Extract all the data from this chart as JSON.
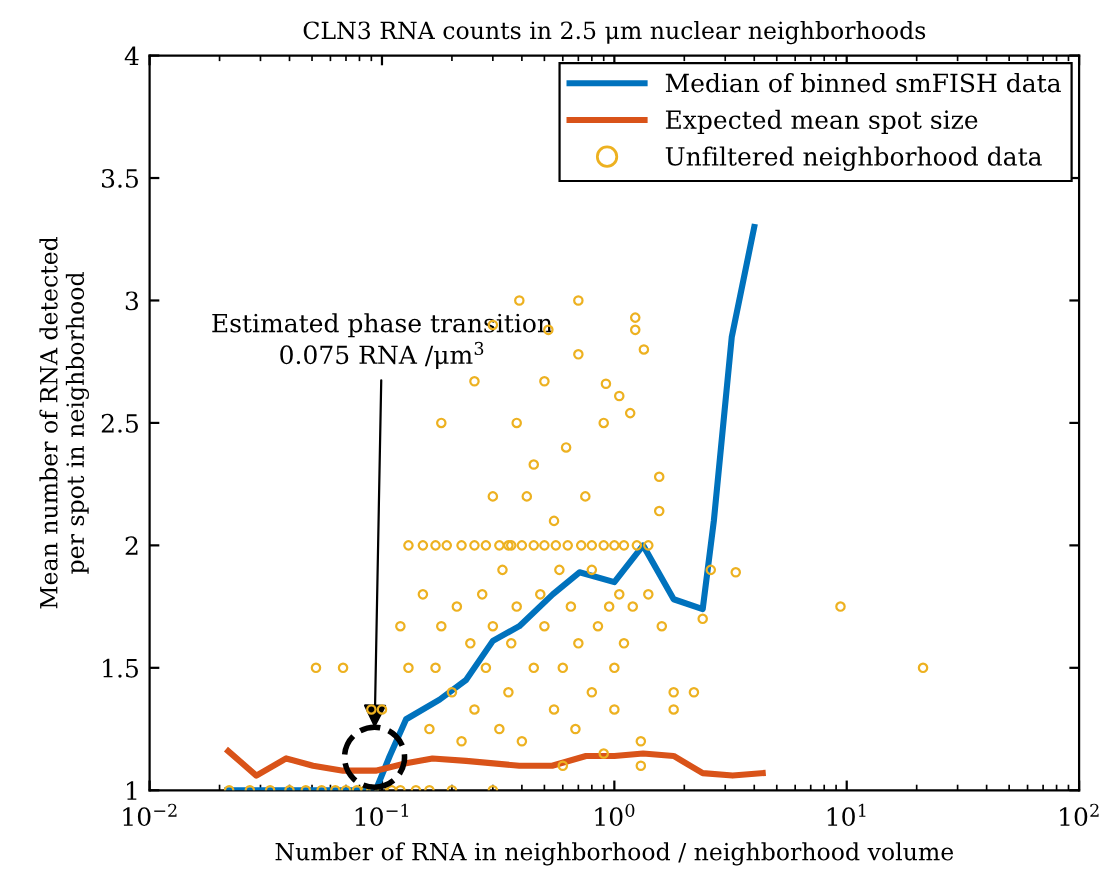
{
  "chart_data": {
    "type": "scatter",
    "title": "CLN3 RNA counts in 2.5 μm nuclear neighborhoods",
    "xlabel": "Number of RNA in neighborhood / neighborhood volume",
    "ylabel": "Mean number of RNA detected\nper spot in neighborhood",
    "log": "x",
    "xlim": [
      0.01,
      100
    ],
    "xticks": [
      {
        "value": 0.01,
        "label": "10$^{−2}$"
      },
      {
        "value": 0.1,
        "label": "10$^{−1}$"
      },
      {
        "value": 1,
        "label": "10$^{0}$"
      },
      {
        "value": 10,
        "label": "10$^{1}$"
      },
      {
        "value": 100,
        "label": "10$^{2}$"
      }
    ],
    "ylim": [
      1,
      4
    ],
    "yticks": [
      1,
      1.5,
      2,
      2.5,
      3,
      3.5,
      4
    ],
    "grid": false,
    "legend": "top right",
    "series": [
      {
        "name": "Median of binned smFISH data",
        "type": "line",
        "color": "#0072bd",
        "x": [
          0.0216,
          0.094,
          0.108,
          0.127,
          0.177,
          0.23,
          0.3,
          0.39,
          0.543,
          0.708,
          1.0,
          1.33,
          1.8,
          2.4,
          2.68,
          3.2,
          4.0
        ],
        "values": [
          1,
          1,
          1.14,
          1.29,
          1.37,
          1.45,
          1.61,
          1.67,
          1.8,
          1.89,
          1.85,
          2.0,
          1.78,
          1.74,
          2.1,
          2.85,
          3.3
        ]
      },
      {
        "name": "Expected mean spot size",
        "type": "line",
        "color": "#d95319",
        "x": [
          0.0218,
          0.0288,
          0.0387,
          0.0505,
          0.068,
          0.094,
          0.127,
          0.165,
          0.23,
          0.39,
          0.54,
          0.755,
          1.0,
          1.33,
          1.8,
          2.4,
          3.23,
          4.35
        ],
        "values": [
          1.16,
          1.06,
          1.13,
          1.1,
          1.08,
          1.08,
          1.11,
          1.13,
          1.12,
          1.1,
          1.1,
          1.14,
          1.14,
          1.15,
          1.14,
          1.07,
          1.06,
          1.07
        ]
      },
      {
        "name": "Unfiltered neighborhood data",
        "color": "#edb120",
        "marker": "circle",
        "x": [
          0.022,
          0.027,
          0.033,
          0.04,
          0.047,
          0.055,
          0.063,
          0.07,
          0.078,
          0.085,
          0.09,
          0.1,
          0.11,
          0.12,
          0.14,
          0.16,
          0.2,
          0.3,
          0.13,
          0.15,
          0.17,
          0.19,
          0.22,
          0.25,
          0.28,
          0.32,
          0.36,
          0.4,
          0.45,
          0.5,
          0.56,
          0.63,
          0.72,
          0.8,
          0.9,
          1.0,
          1.1,
          1.25,
          1.4,
          0.1,
          0.09,
          0.12,
          0.13,
          0.15,
          0.16,
          0.17,
          0.18,
          0.2,
          0.21,
          0.22,
          0.24,
          0.25,
          0.27,
          0.28,
          0.3,
          0.3,
          0.32,
          0.33,
          0.35,
          0.36,
          0.38,
          0.38,
          0.4,
          0.42,
          0.45,
          0.45,
          0.48,
          0.5,
          0.5,
          0.52,
          0.55,
          0.55,
          0.58,
          0.6,
          0.62,
          0.65,
          0.68,
          0.7,
          0.7,
          0.7,
          0.75,
          0.8,
          0.8,
          0.85,
          0.9,
          0.92,
          0.95,
          1.0,
          1.05,
          1.05,
          1.1,
          1.17,
          1.2,
          1.23,
          1.23,
          1.34,
          1.4,
          1.56,
          1.56,
          1.6,
          1.8,
          1.8,
          2.4,
          2.6,
          3.33,
          9.4,
          21.3,
          0.052,
          0.068,
          0.39,
          0.18,
          0.25,
          0.3,
          1.3,
          1.3,
          0.6,
          0.9,
          2.2,
          1.0,
          0.35
        ],
        "values": [
          1,
          1,
          1,
          1,
          1,
          1,
          1,
          1,
          1,
          1,
          1,
          1,
          1,
          1,
          1,
          1,
          1,
          1,
          2,
          2,
          2,
          2,
          2,
          2,
          2,
          2,
          2,
          2,
          2,
          2,
          2,
          2,
          2,
          2,
          2,
          2,
          2,
          2,
          2,
          1.33,
          1.33,
          1.67,
          1.5,
          1.8,
          1.25,
          1.5,
          1.67,
          1.4,
          1.75,
          1.2,
          1.6,
          1.33,
          1.8,
          1.5,
          1.67,
          2.2,
          1.25,
          1.9,
          1.4,
          1.6,
          2.5,
          1.75,
          1.2,
          2.2,
          1.5,
          2.33,
          1.8,
          1.67,
          2.67,
          2.88,
          1.33,
          2.1,
          1.9,
          1.5,
          2.4,
          1.75,
          1.25,
          3.0,
          2.78,
          1.6,
          2.2,
          1.4,
          1.9,
          1.67,
          2.5,
          2.66,
          1.75,
          1.33,
          2.61,
          1.8,
          1.6,
          2.54,
          1.75,
          2.93,
          2.88,
          2.8,
          1.8,
          2.28,
          2.14,
          1.67,
          1.4,
          1.33,
          1.7,
          1.9,
          1.89,
          1.75,
          1.5,
          1.5,
          1.5,
          3.0,
          2.5,
          2.67,
          2.9,
          1.1,
          1.2,
          1.1,
          1.15,
          1.4,
          1.5,
          2.0
        ]
      }
    ],
    "annotations": [
      "Estimated phase transition\n0.075 RNA /μm$^{3}$"
    ]
  }
}
